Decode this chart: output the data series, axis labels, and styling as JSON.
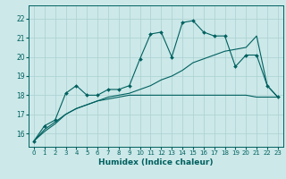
{
  "xlabel": "Humidex (Indice chaleur)",
  "xlim": [
    -0.5,
    23.5
  ],
  "ylim": [
    15.3,
    22.7
  ],
  "yticks": [
    16,
    17,
    18,
    19,
    20,
    21,
    22
  ],
  "xticks": [
    0,
    1,
    2,
    3,
    4,
    5,
    6,
    7,
    8,
    9,
    10,
    11,
    12,
    13,
    14,
    15,
    16,
    17,
    18,
    19,
    20,
    21,
    22,
    23
  ],
  "background_color": "#cce8e8",
  "grid_color": "#aad0d0",
  "line_color": "#006060",
  "x_vals": [
    0,
    1,
    2,
    3,
    4,
    5,
    6,
    7,
    8,
    9,
    10,
    11,
    12,
    13,
    14,
    15,
    16,
    17,
    18,
    19,
    20,
    21,
    22,
    23
  ],
  "y_main": [
    15.6,
    16.4,
    16.7,
    18.1,
    18.5,
    18.0,
    18.0,
    18.3,
    18.3,
    18.5,
    19.9,
    21.2,
    21.3,
    20.0,
    21.8,
    21.9,
    21.3,
    21.1,
    21.1,
    19.5,
    20.1,
    20.1,
    18.5,
    17.9
  ],
  "y_rise": [
    15.6,
    16.2,
    16.6,
    17.0,
    17.3,
    17.5,
    17.7,
    17.9,
    18.0,
    18.1,
    18.3,
    18.5,
    18.8,
    19.0,
    19.3,
    19.7,
    19.9,
    20.1,
    20.3,
    20.4,
    20.5,
    21.1,
    18.5,
    17.9
  ],
  "y_flat": [
    15.6,
    16.1,
    16.5,
    17.0,
    17.3,
    17.5,
    17.7,
    17.8,
    17.9,
    18.0,
    18.0,
    18.0,
    18.0,
    18.0,
    18.0,
    18.0,
    18.0,
    18.0,
    18.0,
    18.0,
    18.0,
    17.9,
    17.9,
    17.9
  ]
}
